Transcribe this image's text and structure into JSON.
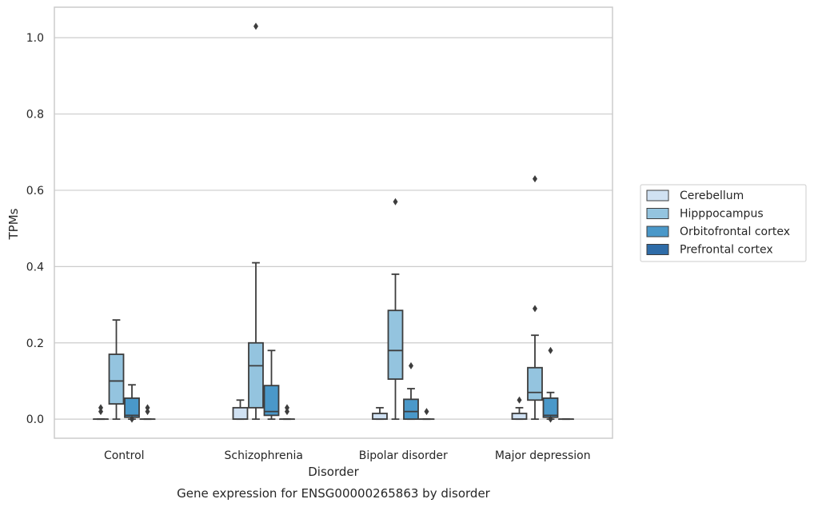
{
  "caption": "Gene expression for ENSG00000265863 by disorder",
  "chart_data": {
    "type": "boxplot",
    "xlabel": "Disorder",
    "ylabel": "TPMs",
    "ylim": [
      -0.05,
      1.08
    ],
    "yticks": [
      0.0,
      0.2,
      0.4,
      0.6,
      0.8,
      1.0
    ],
    "ytick_labels": [
      "0.0",
      "0.2",
      "0.4",
      "0.6",
      "0.8",
      "1.0"
    ],
    "grid": true,
    "legend_position": "right",
    "categories": [
      "Control",
      "Schizophrenia",
      "Bipolar disorder",
      "Major depression"
    ],
    "series": [
      {
        "name": "Cerebellum",
        "color": "#d0e1f2",
        "boxes": [
          {
            "q1": 0.0,
            "median": 0.0,
            "q3": 0.0,
            "whislo": 0.0,
            "whishi": 0.0,
            "fliers": [
              0.02,
              0.03
            ]
          },
          {
            "q1": 0.0,
            "median": 0.0,
            "q3": 0.03,
            "whislo": 0.0,
            "whishi": 0.05,
            "fliers": []
          },
          {
            "q1": 0.0,
            "median": 0.0,
            "q3": 0.015,
            "whislo": 0.0,
            "whishi": 0.03,
            "fliers": []
          },
          {
            "q1": 0.0,
            "median": 0.0,
            "q3": 0.015,
            "whislo": 0.0,
            "whishi": 0.03,
            "fliers": [
              0.05
            ]
          }
        ]
      },
      {
        "name": "Hipppocampus",
        "color": "#94c4df",
        "boxes": [
          {
            "q1": 0.04,
            "median": 0.1,
            "q3": 0.17,
            "whislo": 0.0,
            "whishi": 0.26,
            "fliers": []
          },
          {
            "q1": 0.03,
            "median": 0.14,
            "q3": 0.2,
            "whislo": 0.0,
            "whishi": 0.41,
            "fliers": [
              1.03
            ]
          },
          {
            "q1": 0.105,
            "median": 0.18,
            "q3": 0.285,
            "whislo": 0.0,
            "whishi": 0.38,
            "fliers": [
              0.57
            ]
          },
          {
            "q1": 0.05,
            "median": 0.07,
            "q3": 0.135,
            "whislo": 0.0,
            "whishi": 0.22,
            "fliers": [
              0.29,
              0.63
            ]
          }
        ]
      },
      {
        "name": "Orbitofrontal cortex",
        "color": "#4a98c9",
        "boxes": [
          {
            "q1": 0.005,
            "median": 0.01,
            "q3": 0.055,
            "whislo": 0.0,
            "whishi": 0.09,
            "fliers": [
              0.0
            ]
          },
          {
            "q1": 0.01,
            "median": 0.02,
            "q3": 0.088,
            "whislo": 0.0,
            "whishi": 0.18,
            "fliers": []
          },
          {
            "q1": 0.0,
            "median": 0.02,
            "q3": 0.052,
            "whislo": 0.0,
            "whishi": 0.08,
            "fliers": [
              0.14
            ]
          },
          {
            "q1": 0.005,
            "median": 0.01,
            "q3": 0.055,
            "whislo": 0.0,
            "whishi": 0.07,
            "fliers": [
              0.0,
              0.18
            ]
          }
        ]
      },
      {
        "name": "Prefrontal cortex",
        "color": "#2e6ca8",
        "boxes": [
          {
            "q1": 0.0,
            "median": 0.0,
            "q3": 0.0,
            "whislo": 0.0,
            "whishi": 0.0,
            "fliers": [
              0.02,
              0.03
            ]
          },
          {
            "q1": 0.0,
            "median": 0.0,
            "q3": 0.0,
            "whislo": 0.0,
            "whishi": 0.0,
            "fliers": [
              0.02,
              0.03
            ]
          },
          {
            "q1": 0.0,
            "median": 0.0,
            "q3": 0.0,
            "whislo": 0.0,
            "whishi": 0.0,
            "fliers": [
              0.02
            ]
          },
          {
            "q1": 0.0,
            "median": 0.0,
            "q3": 0.0,
            "whislo": 0.0,
            "whishi": 0.0,
            "fliers": []
          }
        ]
      }
    ]
  }
}
